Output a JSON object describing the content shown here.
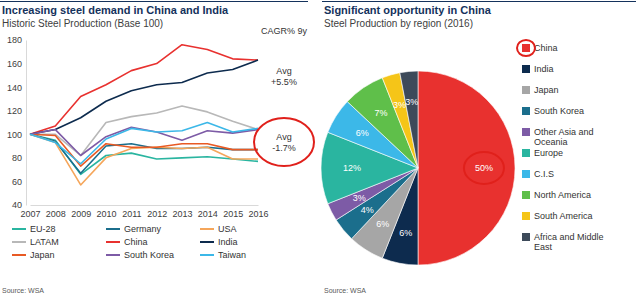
{
  "chart_data": [
    {
      "type": "line",
      "title": "Increasing steel demand in China and India",
      "subtitle": "Historic Steel Production (Base 100)",
      "source": "Source: WSA",
      "categories": [
        "2007",
        "2008",
        "2009",
        "2010",
        "2011",
        "2012",
        "2013",
        "2014",
        "2015",
        "2016"
      ],
      "series": [
        {
          "name": "EU-28",
          "color": "#2ab5a0",
          "values": [
            100,
            95,
            66,
            82,
            84,
            79,
            80,
            81,
            79,
            77
          ]
        },
        {
          "name": "Germany",
          "color": "#1b6e8c",
          "values": [
            100,
            94,
            67,
            90,
            92,
            88,
            88,
            89,
            87,
            87
          ]
        },
        {
          "name": "USA",
          "color": "#f5a65b",
          "values": [
            100,
            93,
            57,
            80,
            88,
            89,
            88,
            89,
            79,
            79
          ]
        },
        {
          "name": "LATAM",
          "color": "#b8b8b8",
          "values": [
            100,
            100,
            82,
            110,
            115,
            118,
            124,
            119,
            111,
            104
          ]
        },
        {
          "name": "China",
          "color": "#e8312f",
          "values": [
            100,
            107,
            132,
            142,
            154,
            160,
            176,
            172,
            164,
            163
          ]
        },
        {
          "name": "India",
          "color": "#0d2b4e",
          "values": [
            100,
            104,
            114,
            128,
            137,
            142,
            144,
            152,
            155,
            163
          ]
        },
        {
          "name": "Japan",
          "color": "#e85a24",
          "values": [
            100,
            99,
            73,
            92,
            89,
            89,
            92,
            92,
            87,
            87
          ]
        },
        {
          "name": "South Korea",
          "color": "#7d5ba6",
          "values": [
            100,
            104,
            82,
            98,
            106,
            102,
            95,
            103,
            101,
            104
          ]
        },
        {
          "name": "Taiwan",
          "color": "#3cb8e8",
          "values": [
            100,
            93,
            75,
            96,
            105,
            102,
            103,
            110,
            102,
            105
          ]
        }
      ],
      "ylim": [
        40,
        180
      ],
      "yticks": [
        40,
        60,
        80,
        100,
        120,
        140,
        160,
        180
      ],
      "grid": false,
      "legend": "bottom",
      "annotations": [
        [
          "CAGR% 9y"
        ],
        [
          "Avg",
          "+5.5%"
        ],
        [
          "Avg",
          "-1.7%"
        ]
      ]
    },
    {
      "type": "pie",
      "title": "Significant opportunity in China",
      "subtitle": "Steel Production by region (2016)",
      "source": "Source: WSA",
      "categories": [
        "China",
        "India",
        "Japan",
        "South Korea",
        "Other Asia and Oceania",
        "Europe",
        "C.I.S",
        "North America",
        "South America",
        "Africa and Middle East"
      ],
      "values": [
        50,
        6,
        6,
        4,
        3,
        12,
        6,
        7,
        3,
        3
      ],
      "value_labels": [
        "50%",
        "6%",
        "6%",
        "4%",
        "3%",
        "12%",
        "6%",
        "7%",
        "3%",
        "3%"
      ],
      "colors": [
        "#e8312f",
        "#0d2b4e",
        "#a6a6a6",
        "#1b6e8c",
        "#7d5ba6",
        "#2ab5a0",
        "#3cb8e8",
        "#5fbf4a",
        "#f5c518",
        "#3d4a5a"
      ],
      "data_labels": true,
      "legend": "right"
    }
  ]
}
